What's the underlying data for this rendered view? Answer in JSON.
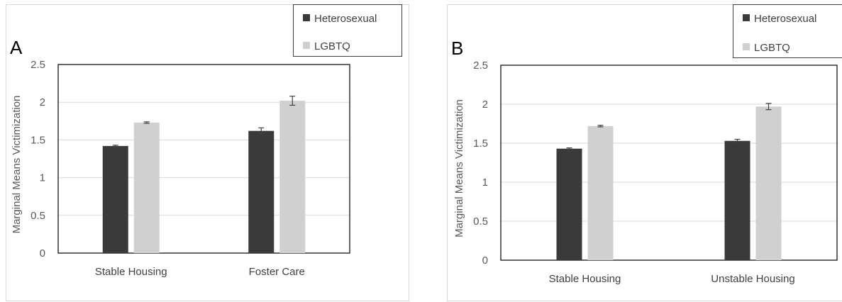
{
  "chart_data": [
    {
      "type": "bar",
      "panel_letter": "A",
      "categories": [
        "Stable Housing",
        "Foster Care"
      ],
      "series": [
        {
          "name": "Heterosexual",
          "values": [
            1.42,
            1.62
          ],
          "errors": [
            0.01,
            0.04
          ],
          "color": "#3a3a3a"
        },
        {
          "name": "LGBTQ",
          "values": [
            1.73,
            2.02
          ],
          "errors": [
            0.01,
            0.06
          ],
          "color": "#d0d0d0"
        }
      ],
      "ylabel": "Marginal Means Victimization",
      "xlabel": "",
      "ylim": [
        0,
        2.5
      ],
      "yticks": [
        "0",
        "0.5",
        "1",
        "1.5",
        "2",
        "2.5"
      ],
      "grid": true,
      "legend_position": "top-right"
    },
    {
      "type": "bar",
      "panel_letter": "B",
      "categories": [
        "Stable Housing",
        "Unstable Housing"
      ],
      "series": [
        {
          "name": "Heterosexual",
          "values": [
            1.43,
            1.53
          ],
          "errors": [
            0.01,
            0.02
          ],
          "color": "#3a3a3a"
        },
        {
          "name": "LGBTQ",
          "values": [
            1.72,
            1.97
          ],
          "errors": [
            0.01,
            0.04
          ],
          "color": "#d0d0d0"
        }
      ],
      "ylabel": "Marginal Means Victimization",
      "xlabel": "",
      "ylim": [
        0,
        2.5
      ],
      "yticks": [
        "0",
        "0.5",
        "1",
        "1.5",
        "2",
        "2.5"
      ],
      "grid": true,
      "legend_position": "top-right"
    }
  ]
}
